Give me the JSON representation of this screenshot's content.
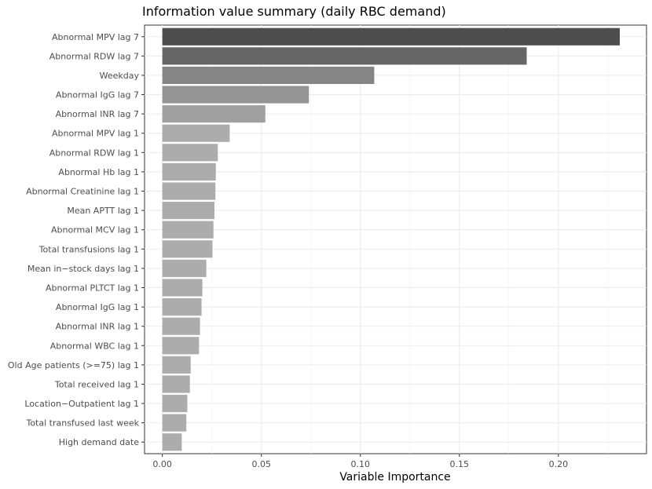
{
  "chart_data": {
    "type": "bar",
    "orientation": "horizontal",
    "title": "Information value summary (daily RBC demand)",
    "xlabel": "Variable Importance",
    "ylabel": "",
    "xlim": [
      -0.009,
      0.2445
    ],
    "x_ticks": [
      0.0,
      0.05,
      0.1,
      0.15,
      0.2
    ],
    "x_tick_labels": [
      "0.00",
      "0.05",
      "0.10",
      "0.15",
      "0.20"
    ],
    "grid": true,
    "legend": "none",
    "categories": [
      "Abnormal MPV lag 7",
      "Abnormal RDW lag 7",
      "Weekday",
      "Abnormal IgG lag 7",
      "Abnormal INR lag 7",
      "Abnormal MPV lag 1",
      "Abnormal RDW lag 1",
      "Abnormal Hb lag 1",
      "Abnormal Creatinine lag 1",
      "Mean APTT lag 1",
      "Abnormal MCV lag 1",
      "Total transfusions lag 1",
      "Mean in−stock days lag 1",
      "Abnormal PLTCT lag 1",
      "Abnormal IgG lag 1",
      "Abnormal INR lag 1",
      "Abnormal WBC lag 1",
      "Old Age patients (>=75) lag 1",
      "Total received lag 1",
      "Location−Outpatient lag 1",
      "Total transfused last week",
      "High demand date"
    ],
    "values": [
      0.231,
      0.184,
      0.107,
      0.074,
      0.052,
      0.034,
      0.028,
      0.027,
      0.0268,
      0.0263,
      0.0258,
      0.0253,
      0.0222,
      0.0202,
      0.0198,
      0.019,
      0.0185,
      0.0143,
      0.0139,
      0.0126,
      0.0121,
      0.0098
    ],
    "colors": [
      "#4d4d4d",
      "#666666",
      "#858585",
      "#949494",
      "#a0a0a0",
      "#acacac",
      "#acacac",
      "#acacac",
      "#acacac",
      "#acacac",
      "#acacac",
      "#acacac",
      "#acacac",
      "#acacac",
      "#acacac",
      "#acacac",
      "#acacac",
      "#acacac",
      "#acacac",
      "#acacac",
      "#acacac",
      "#acacac"
    ]
  }
}
